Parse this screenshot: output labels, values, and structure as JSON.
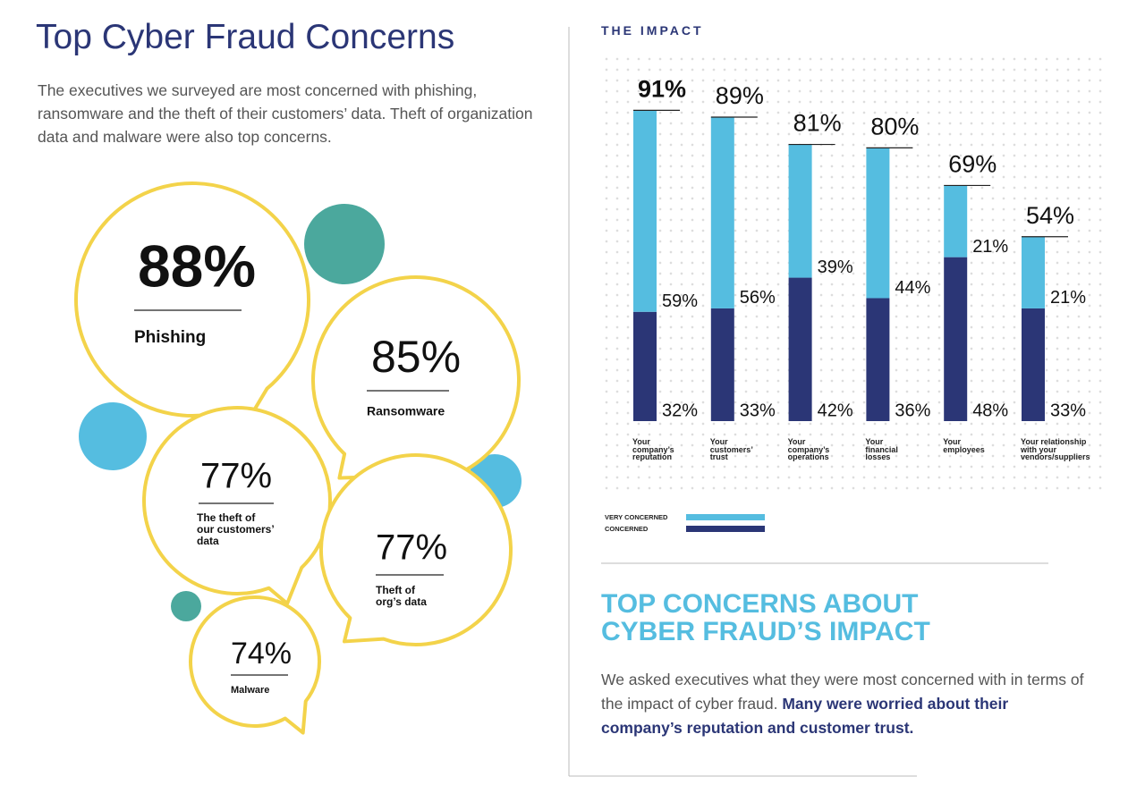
{
  "left": {
    "title": "Top Cyber Fraud Concerns",
    "intro": "The executives we surveyed are most concerned with phishing, ransomware and the theft of their customers’ data. Theft of organization data and malware were also top concerns.",
    "bubbles": [
      {
        "value": "88%",
        "label_lines": [
          "Phishing"
        ]
      },
      {
        "value": "85%",
        "label_lines": [
          "Ransomware"
        ]
      },
      {
        "value": "77%",
        "label_lines": [
          "The theft of",
          "our customers’",
          "data"
        ]
      },
      {
        "value": "77%",
        "label_lines": [
          "Theft of",
          "org’s data"
        ]
      },
      {
        "value": "74%",
        "label_lines": [
          "Malware"
        ]
      }
    ]
  },
  "chart_data": {
    "type": "bar",
    "stacked": true,
    "title": "THE IMPACT",
    "categories": [
      "Your company’s reputation",
      "Your customers’ trust",
      "Your company’s operations",
      "Your financial losses",
      "Your employees",
      "Your relationship with your vendors/suppliers"
    ],
    "totals": [
      91,
      89,
      81,
      80,
      69,
      54
    ],
    "total_labels": [
      "91%",
      "89%",
      "81%",
      "80%",
      "69%",
      "54%"
    ],
    "series": [
      {
        "name": "VERY CONCERNED",
        "color": "#55bde0",
        "values": [
          59,
          56,
          39,
          44,
          21,
          21
        ],
        "value_labels": [
          "59%",
          "56%",
          "39%",
          "44%",
          "21%",
          "21%"
        ]
      },
      {
        "name": "CONCERNED",
        "color": "#2b3676",
        "values": [
          32,
          33,
          42,
          36,
          48,
          33
        ],
        "value_labels": [
          "32%",
          "33%",
          "42%",
          "36%",
          "48%",
          "33%"
        ]
      }
    ]
  },
  "right": {
    "heading": "TOP CONCERNS ABOUT CYBER FRAUD’S IMPACT",
    "body": "We asked executives what they were most concerned with in terms of the impact of cyber fraud.",
    "body_bold": "Many were worried about their company’s reputation and customer trust."
  }
}
